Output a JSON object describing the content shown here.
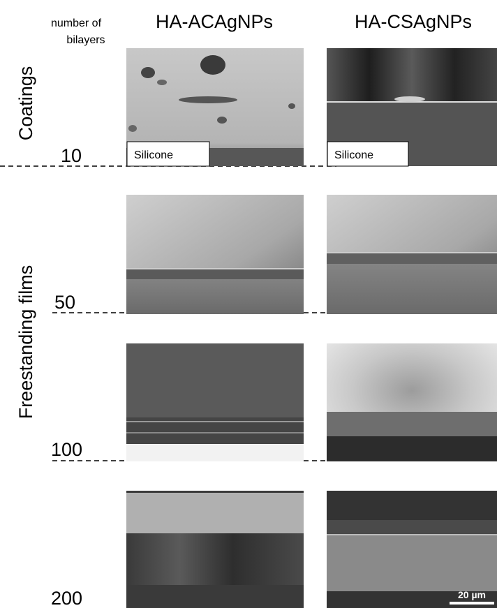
{
  "header": {
    "bilayers_label": [
      "number of",
      "bilayers"
    ],
    "columns": [
      "HA-ACAgNPs",
      "HA-CSAgNPs"
    ]
  },
  "groups": [
    "Coatings",
    "Freestanding films"
  ],
  "rows": [
    {
      "bilayers": "10",
      "image_labels": [
        "Silicone",
        "Silicone"
      ]
    },
    {
      "bilayers": "50"
    },
    {
      "bilayers": "100"
    },
    {
      "bilayers": "200"
    }
  ],
  "scale_bar": "20 µm"
}
